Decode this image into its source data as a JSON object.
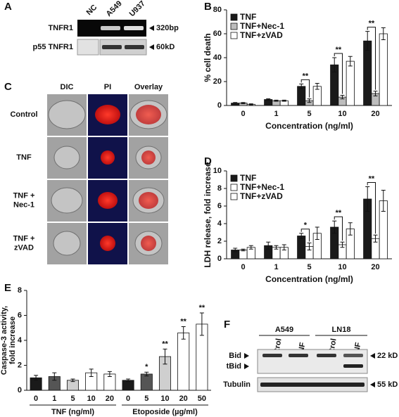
{
  "figure": {
    "panel_labels": [
      "A",
      "B",
      "C",
      "D",
      "E",
      "F"
    ],
    "A": {
      "lanes": [
        "NC",
        "A549",
        "U937"
      ],
      "rows": [
        "TNFR1",
        "p55 TNFR1"
      ],
      "sizes": [
        "320bp",
        "60kD"
      ]
    },
    "C": {
      "columns": [
        "DIC",
        "PI",
        "Overlay"
      ],
      "rows": [
        [
          "Control"
        ],
        [
          "TNF"
        ],
        [
          "TNF +",
          "Nec-1"
        ],
        [
          "TNF +",
          "zVAD"
        ]
      ]
    },
    "F": {
      "groups": [
        "A549",
        "LN18"
      ],
      "lanes": [
        "Control",
        "TNF",
        "Control",
        "TNF"
      ],
      "bands": [
        "Bid",
        "tBid",
        "Tubulin"
      ],
      "sizes": [
        "22 kD",
        "55 kD"
      ]
    }
  },
  "chart_data": [
    {
      "type": "bar",
      "ylabel": "% cell death",
      "xlabel": "Concentration (ng/ml)",
      "categories": [
        "0",
        "1",
        "5",
        "10",
        "20"
      ],
      "series": [
        {
          "name": "TNF",
          "color": "#1a1a1a",
          "values": [
            2,
            5,
            16,
            34,
            54
          ],
          "errors": [
            0.5,
            0.6,
            2,
            6,
            8
          ]
        },
        {
          "name": "TNF+Nec-1",
          "color": "#bdbdbd",
          "values": [
            2,
            4,
            4,
            7,
            10
          ],
          "errors": [
            0.5,
            0.5,
            1.5,
            1.5,
            2
          ]
        },
        {
          "name": "TNF+zVAD",
          "color": "#ffffff",
          "values": [
            1,
            4,
            16,
            37,
            60
          ],
          "errors": [
            0.4,
            0.5,
            2.5,
            4,
            5
          ]
        }
      ],
      "significance": [
        null,
        null,
        "**",
        "**",
        "**"
      ],
      "ylim": [
        0,
        80
      ],
      "yticks": [
        0,
        20,
        40,
        60,
        80
      ],
      "legend": "upper left"
    },
    {
      "type": "bar",
      "ylabel": "LDH release, fold increase",
      "xlabel": "Concentration (ng/ml)",
      "categories": [
        "0",
        "1",
        "5",
        "10",
        "20"
      ],
      "series": [
        {
          "name": "TNF",
          "color": "#1a1a1a",
          "values": [
            1.0,
            1.5,
            2.6,
            3.6,
            6.8
          ],
          "errors": [
            0.2,
            0.4,
            0.3,
            0.7,
            1.4
          ]
        },
        {
          "name": "TNF+Nec-1",
          "color": "#ffffff",
          "values": [
            1.0,
            1.3,
            1.4,
            1.6,
            2.3
          ],
          "errors": [
            0.1,
            0.2,
            0.4,
            0.3,
            0.4
          ]
        },
        {
          "name": "TNF+zVAD",
          "color": "#ffffff",
          "values": [
            1.3,
            1.3,
            2.9,
            3.4,
            6.6
          ],
          "errors": [
            0.2,
            0.3,
            0.7,
            0.7,
            1.2
          ]
        }
      ],
      "significance": [
        null,
        null,
        "*",
        "**",
        "**"
      ],
      "ylim": [
        0,
        10
      ],
      "yticks": [
        0,
        2,
        4,
        6,
        8,
        10
      ],
      "legend": "upper left"
    },
    {
      "type": "bar",
      "ylabel": [
        "Caspase-3 activity,",
        "fold increase"
      ],
      "categories": [
        "0",
        "1",
        "5",
        "10",
        "20",
        "0",
        "5",
        "10",
        "20",
        "50"
      ],
      "category_groups": [
        "TNF (ng/ml)",
        "Etoposide (µg/ml)"
      ],
      "values": [
        1.0,
        1.1,
        0.8,
        1.4,
        1.3,
        0.8,
        1.3,
        2.7,
        4.6,
        5.3
      ],
      "errors": [
        0.2,
        0.3,
        0.1,
        0.3,
        0.2,
        0.1,
        0.15,
        0.6,
        0.5,
        0.9
      ],
      "colors": [
        "#1a1a1a",
        "#555555",
        "#cfcfcf",
        "#ffffff",
        "#ffffff",
        "#1a1a1a",
        "#555555",
        "#cfcfcf",
        "#ffffff",
        "#ffffff"
      ],
      "significance": [
        null,
        null,
        null,
        null,
        null,
        null,
        "*",
        "**",
        "**",
        "**"
      ],
      "ylim": [
        0,
        8
      ],
      "yticks": [
        0,
        2,
        4,
        6,
        8
      ]
    }
  ]
}
